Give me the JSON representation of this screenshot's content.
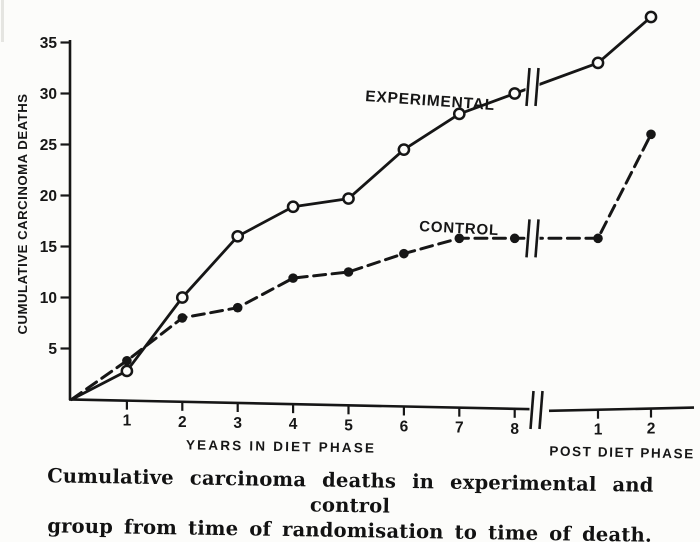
{
  "colors": {
    "ink": "#161616",
    "paper": "#fcfcfa"
  },
  "chart_data": {
    "type": "line",
    "title": "",
    "ylabel": "CUMULATIVE CARCINOMA DEATHS",
    "y_ticks": [
      5,
      10,
      15,
      20,
      25,
      30,
      35
    ],
    "ylim": [
      0,
      38
    ],
    "grid": false,
    "legend_position": "inline-labels",
    "x_axis": {
      "diet_phase": {
        "label": "YEARS IN DIET PHASE",
        "ticks": [
          1,
          2,
          3,
          4,
          5,
          6,
          7,
          8
        ]
      },
      "post_phase": {
        "label": "POST DIET PHASE",
        "ticks": [
          1,
          2
        ]
      },
      "axis_break_between_phases": true
    },
    "series": [
      {
        "name": "EXPERIMENTAL",
        "line_style": "solid",
        "marker": "open-circle",
        "diet_x": [
          0,
          1,
          2,
          3,
          4,
          5,
          6,
          7,
          8
        ],
        "diet_y": [
          0,
          2.8,
          10,
          16,
          18.9,
          19.7,
          24.5,
          28,
          30
        ],
        "post_x": [
          1,
          2
        ],
        "post_y": [
          33,
          37.5
        ]
      },
      {
        "name": "CONTROL",
        "line_style": "dashed",
        "marker": "filled-circle",
        "diet_x": [
          0,
          1,
          2,
          3,
          4,
          5,
          6,
          7,
          8
        ],
        "diet_y": [
          0,
          3.8,
          8,
          9,
          11.9,
          12.5,
          14.3,
          15.8,
          15.8
        ],
        "post_x": [
          1,
          2
        ],
        "post_y": [
          15.8,
          26
        ]
      }
    ]
  },
  "caption": {
    "line1": "Cumulative carcinoma deaths in experimental and control",
    "line2": "group from time of randomisation to time of death."
  }
}
